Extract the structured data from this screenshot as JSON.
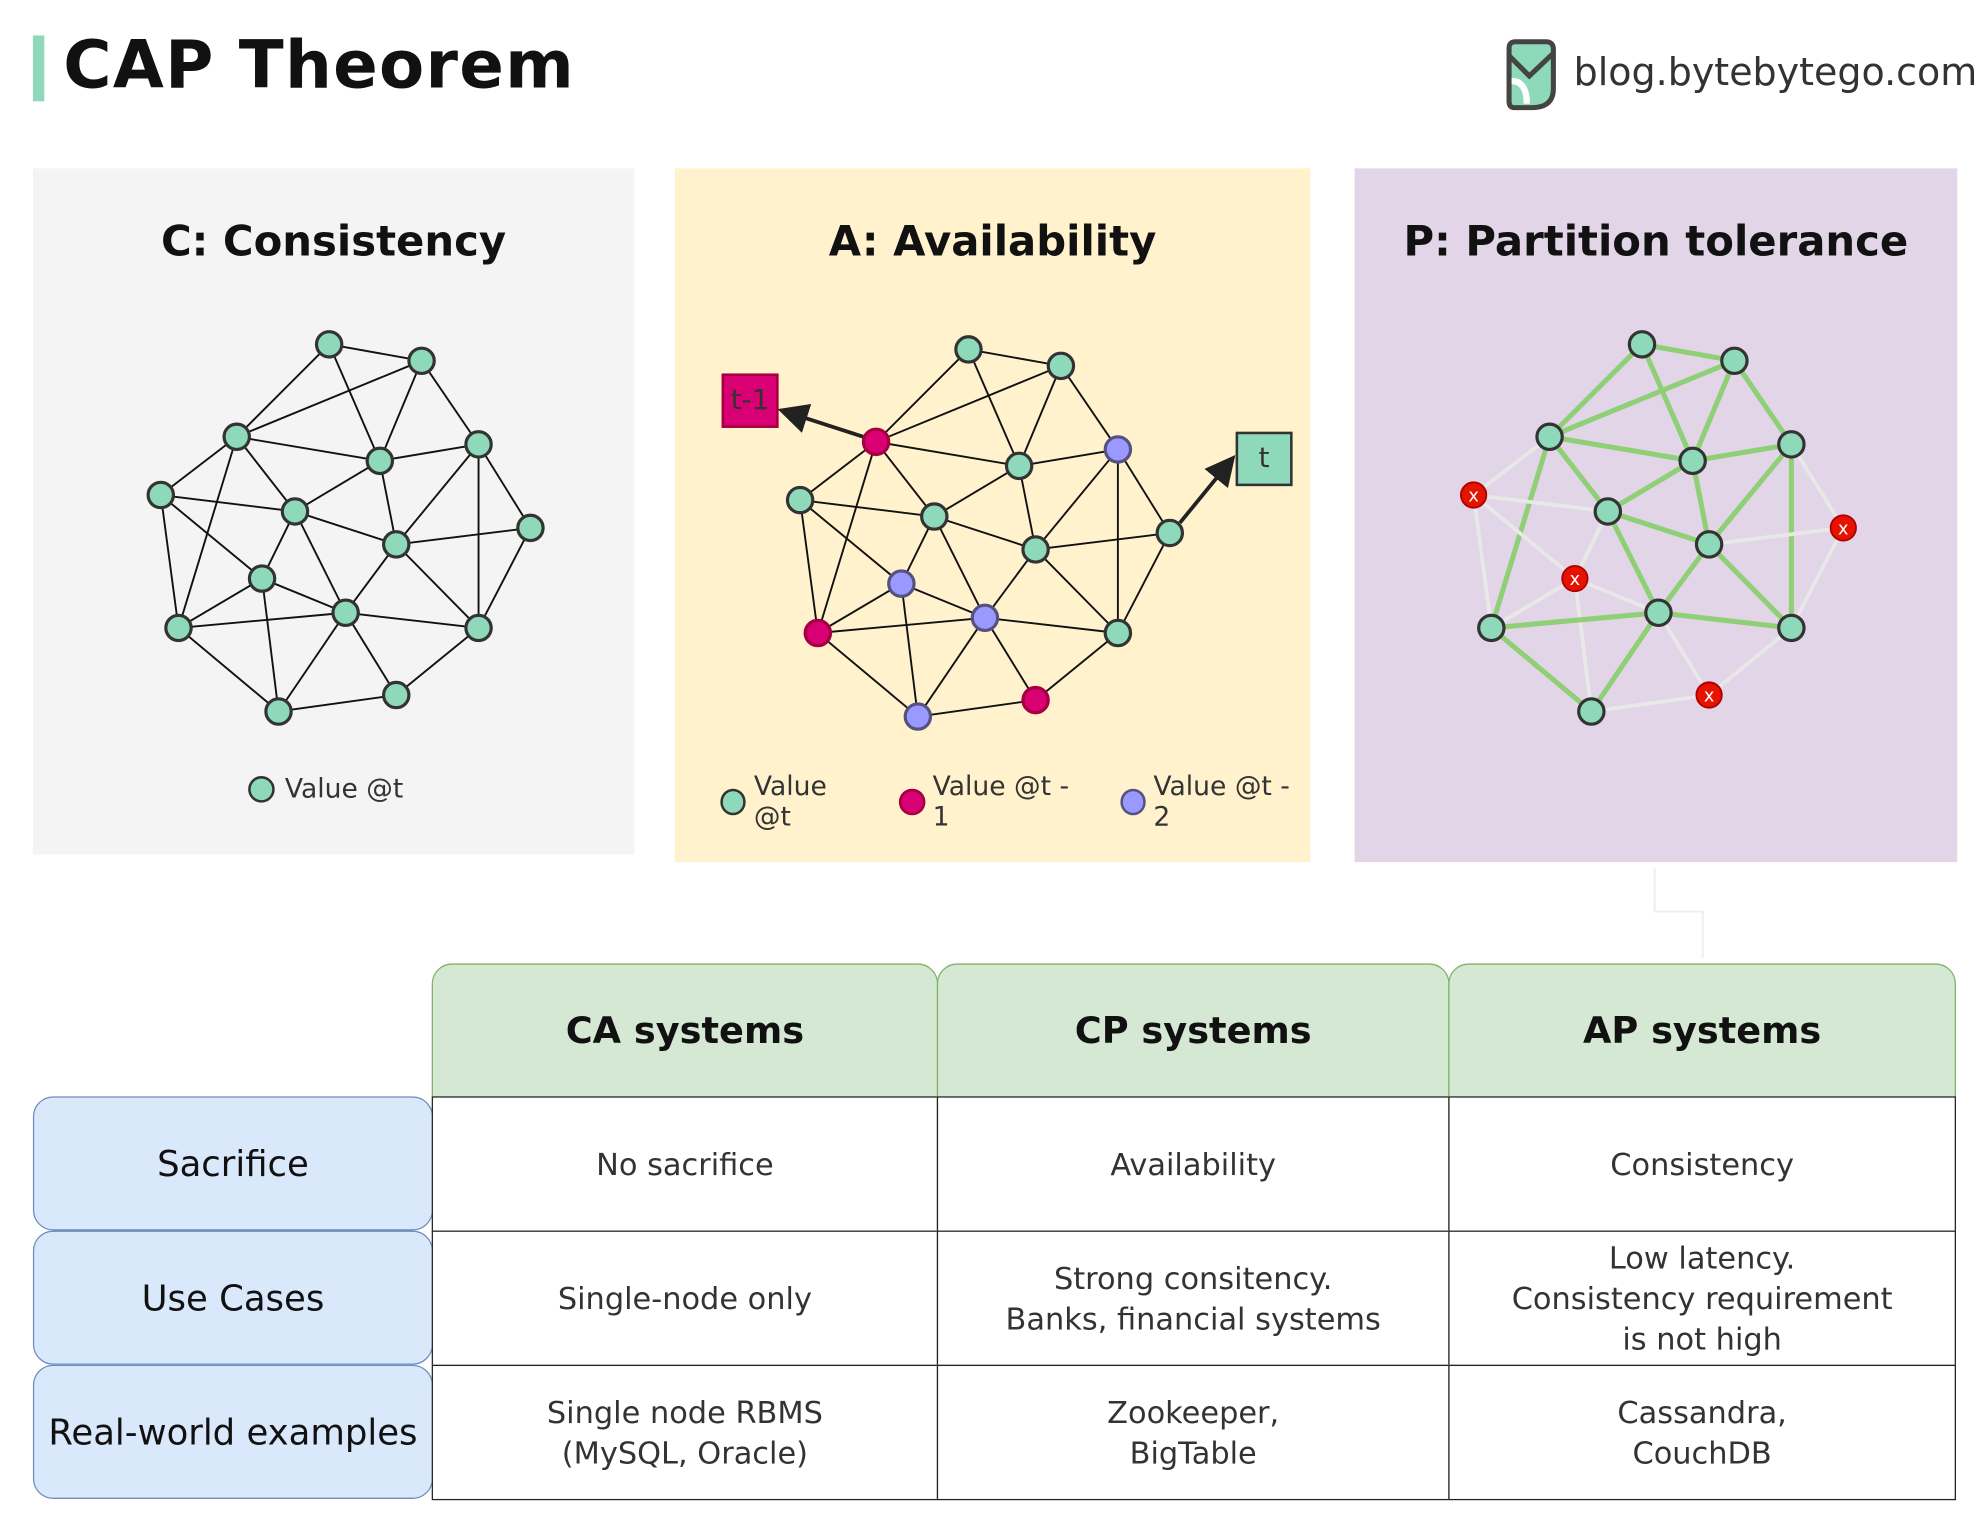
{
  "header": {
    "title": "CAP Theorem",
    "site": "blog.bytebytego.com",
    "accent_color": "#8ed9b9"
  },
  "panels": [
    {
      "title": "C: Consistency",
      "background": "#f4f4f4",
      "node_states": [
        "t",
        "t",
        "t",
        "t",
        "t",
        "t",
        "t",
        "t",
        "t",
        "t",
        "t",
        "t",
        "t",
        "t",
        "t"
      ],
      "legend": [
        {
          "label": "Value @t",
          "color": "#8ed9b9"
        }
      ]
    },
    {
      "title": "A: Availability",
      "background": "#fff2cc",
      "node_states": [
        "t",
        "t",
        "t-1",
        "t",
        "t-2",
        "t",
        "t",
        "t",
        "t",
        "t-2",
        "t-2",
        "t-1",
        "t",
        "t-1",
        "t-2"
      ],
      "callouts": [
        {
          "label": "t-1",
          "color": "#d80073"
        },
        {
          "label": "t",
          "color": "#8ed9b9"
        }
      ],
      "legend": [
        {
          "label": "Value @t",
          "color": "#8ed9b9"
        },
        {
          "label": "Value @t - 1",
          "color": "#d80073"
        },
        {
          "label": "Value @t - 2",
          "color": "#9999ff"
        }
      ]
    },
    {
      "title": "P: Partition tolerance",
      "background": "#e1d5e7",
      "node_states": [
        "t",
        "t",
        "t",
        "t",
        "t",
        "failed",
        "t",
        "t",
        "failed",
        "failed",
        "t",
        "t",
        "t",
        "failed",
        "t"
      ],
      "failed_marker": "x"
    }
  ],
  "table": {
    "columns": [
      "CA systems",
      "CP systems",
      "AP systems"
    ],
    "rows": [
      {
        "label": "Sacrifice",
        "cells": [
          "No sacrifice",
          "Availability",
          "Consistency"
        ]
      },
      {
        "label": "Use Cases",
        "cells": [
          "Single-node only",
          "Strong consitency.\nBanks, financial systems",
          "Low latency.\nConsistency requirement\nis not high"
        ]
      },
      {
        "label": "Real-world examples",
        "cells": [
          "Single node RBMS\n(MySQL, Oracle)",
          "Zookeeper,\nBigTable",
          "Cassandra,\nCouchDB"
        ]
      }
    ]
  },
  "colors": {
    "t": "#8ed9b9",
    "t-1": "#d80073",
    "t-2": "#9999ff",
    "failed": "#e51400",
    "edge_ok": "#8fcf75",
    "edge_cut": "#e8e8e8"
  }
}
